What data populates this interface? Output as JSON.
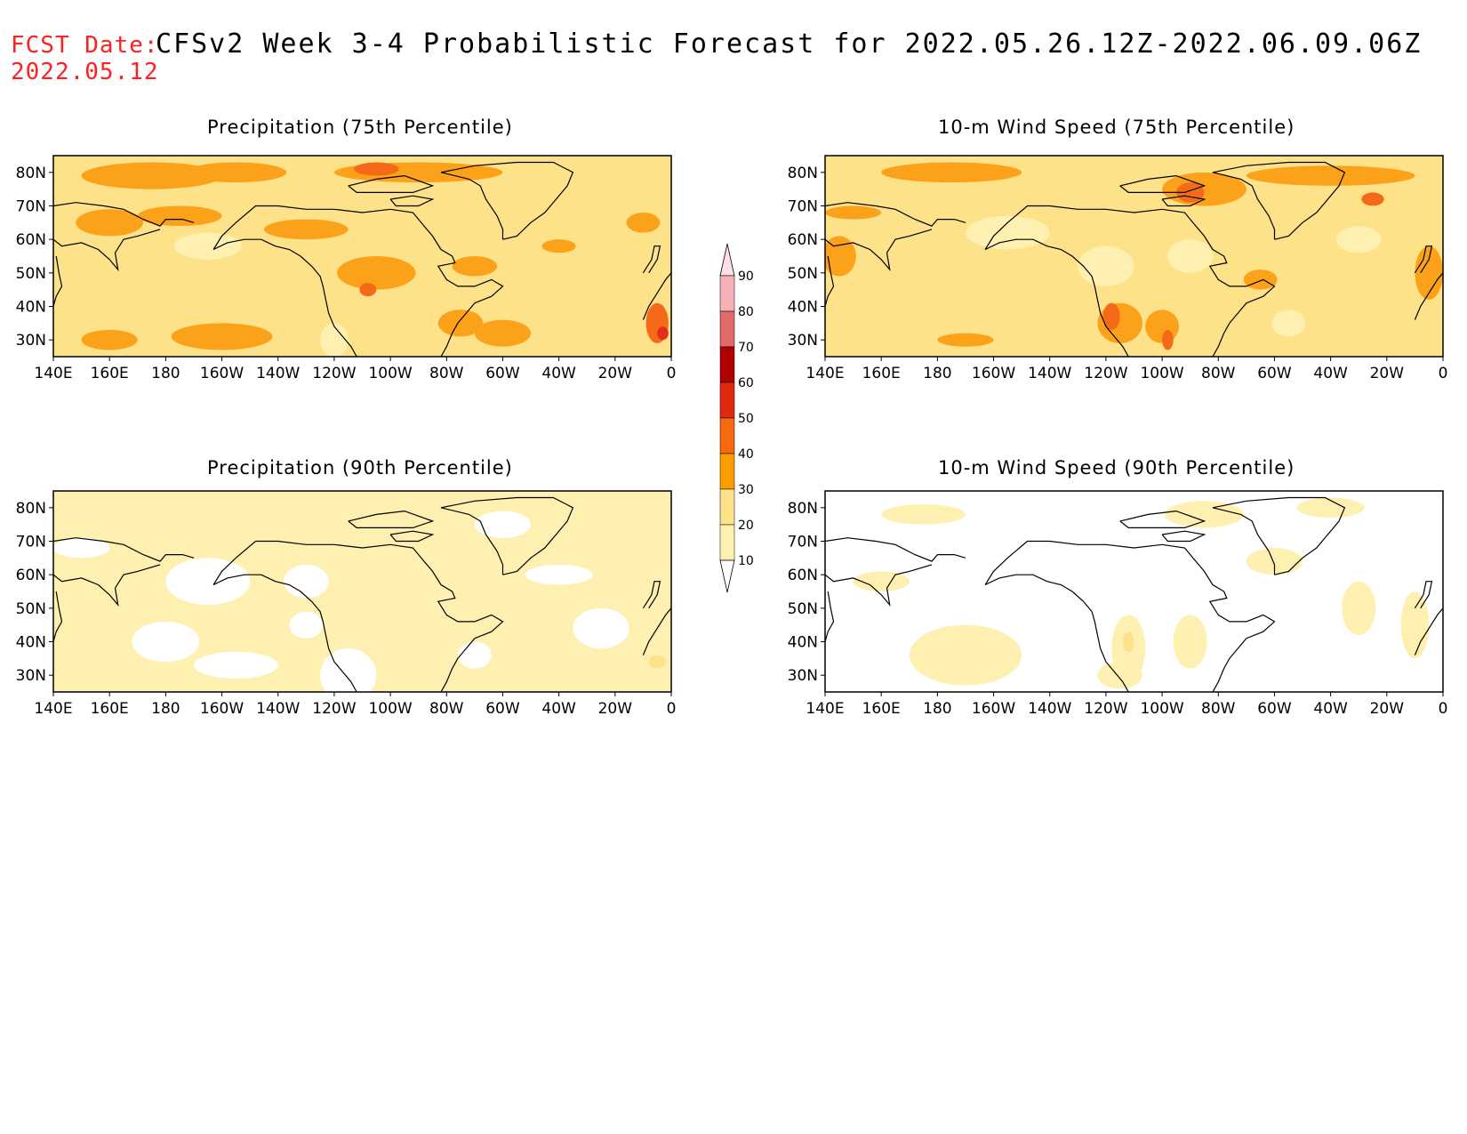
{
  "header": {
    "fcst_label": "FCST Date:",
    "fcst_date": "2022.05.12",
    "title": "CFSv2 Week 3-4 Probabilistic Forecast for 2022.05.26.12Z-2022.06.09.06Z"
  },
  "axes": {
    "lat_labels": [
      "80N",
      "70N",
      "60N",
      "50N",
      "40N",
      "30N"
    ],
    "lon_labels": [
      "140E",
      "160E",
      "180",
      "160W",
      "140W",
      "120W",
      "100W",
      "80W",
      "60W",
      "40W",
      "20W",
      "0"
    ]
  },
  "panels": [
    {
      "id": "precip75",
      "title": "Precipitation (75th Percentile)"
    },
    {
      "id": "wind75",
      "title": "10-m Wind Speed (75th Percentile)"
    },
    {
      "id": "precip90",
      "title": "Precipitation (90th Percentile)"
    },
    {
      "id": "wind90",
      "title": "10-m Wind Speed (90th Percentile)"
    }
  ],
  "colorbar": {
    "labels": [
      "90",
      "80",
      "70",
      "60",
      "50",
      "40",
      "30",
      "20",
      "10"
    ],
    "colors": [
      "#ffffff",
      "#fde9a0",
      "#fdd98a",
      "#fd9c00",
      "#f56a10",
      "#e02a10",
      "#b00000",
      "#e06a6a",
      "#f5b0b8"
    ]
  },
  "colors": {
    "c10": "#fdf0b0",
    "c20": "#fde28a",
    "c30": "#fba21a",
    "c40": "#f46a18",
    "c50": "#e0301a",
    "coast": "#000000"
  }
}
